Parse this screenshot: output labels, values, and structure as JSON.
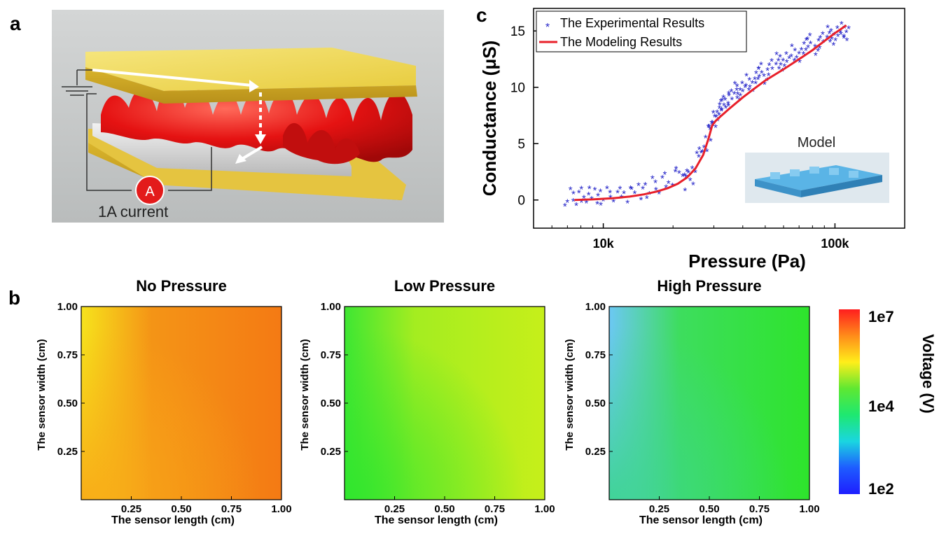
{
  "panels": {
    "a": {
      "letter": "a",
      "current_label": "1A current",
      "ammeter_symbol": "A"
    },
    "b": {
      "letter": "b"
    },
    "c": {
      "letter": "c",
      "inset_label": "Model"
    }
  },
  "chart_data": [
    {
      "panel": "c",
      "type": "scatter",
      "xlabel": "Pressure (Pa)",
      "ylabel": "Conductance (μS)",
      "x_scale": "log",
      "xlim": [
        5000,
        200000
      ],
      "ylim": [
        -2.5,
        17
      ],
      "x_ticks": [
        {
          "value": 10000,
          "label": "10k"
        },
        {
          "value": 100000,
          "label": "100k"
        }
      ],
      "y_ticks": [
        0,
        5,
        10,
        15
      ],
      "legend_position": "top-left",
      "series": [
        {
          "name": "The Experimental Results",
          "marker": "asterisk",
          "color": "#2727c9",
          "x": [
            7000,
            7300,
            7600,
            7900,
            8200,
            8500,
            8800,
            9200,
            9600,
            10000,
            10500,
            11000,
            11600,
            12200,
            12800,
            13500,
            14200,
            15000,
            15800,
            16500,
            17300,
            18100,
            19000,
            20000,
            21000,
            22000,
            22700,
            23300,
            24000,
            24800,
            25500,
            26300,
            27000,
            27700,
            28400,
            29000,
            29600,
            30200,
            31000,
            32000,
            33000,
            34000,
            35500,
            37000,
            38500,
            40000,
            42000,
            44000,
            46000,
            48000,
            50000,
            53000,
            56000,
            59000,
            62000,
            66000,
            70000,
            74000,
            78000,
            83000,
            88000,
            93000,
            98000,
            103000,
            108000,
            112000
          ],
          "y": [
            0.2,
            0.4,
            0.1,
            0.3,
            0.2,
            0.5,
            0.3,
            0.2,
            0.4,
            0.3,
            0.5,
            0.4,
            0.3,
            0.6,
            0.5,
            0.8,
            0.6,
            1.0,
            0.9,
            1.4,
            1.1,
            1.6,
            1.5,
            2.0,
            2.6,
            1.4,
            2.2,
            2.8,
            1.2,
            3.0,
            3.8,
            4.2,
            5.0,
            4.5,
            5.8,
            6.5,
            7.0,
            7.2,
            7.6,
            8.1,
            8.4,
            8.9,
            9.1,
            9.6,
            9.4,
            10.0,
            10.5,
            10.2,
            10.9,
            11.3,
            11.0,
            11.8,
            12.2,
            12.0,
            12.6,
            13.1,
            12.8,
            13.5,
            13.9,
            13.6,
            14.2,
            14.6,
            14.3,
            14.9,
            15.1,
            14.7
          ]
        },
        {
          "name": "The Modeling Results",
          "marker": "line",
          "color": "#e8202a",
          "x": [
            7500,
            9000,
            11000,
            13000,
            15000,
            17000,
            19000,
            21000,
            23000,
            25000,
            27000,
            28500,
            29500,
            30500,
            32000,
            35000,
            40000,
            45000,
            50000,
            60000,
            70000,
            80000,
            90000,
            100000,
            112000
          ],
          "y": [
            0.0,
            0.05,
            0.15,
            0.3,
            0.5,
            0.75,
            1.05,
            1.45,
            2.0,
            2.8,
            4.0,
            5.5,
            6.6,
            7.0,
            7.4,
            8.1,
            9.1,
            9.9,
            10.6,
            11.6,
            12.5,
            13.3,
            14.1,
            14.8,
            15.5
          ]
        }
      ]
    },
    {
      "panel": "b",
      "type": "heatmap",
      "title": "No Pressure",
      "xlabel": "The sensor length (cm)",
      "ylabel": "The sensor width (cm)",
      "xlim": [
        0,
        1
      ],
      "ylim": [
        0,
        1
      ],
      "x_ticks": [
        "0.25",
        "0.50",
        "0.75",
        "1.00"
      ],
      "y_ticks": [
        "0.25",
        "0.50",
        "0.75",
        "1.00"
      ],
      "colors": {
        "base": "#f47a14",
        "edge": "#f6e31c",
        "corner": "#f8a818"
      }
    },
    {
      "panel": "b",
      "type": "heatmap",
      "title": "Low Pressure",
      "xlabel": "The sensor length (cm)",
      "ylabel": "The sensor width (cm)",
      "xlim": [
        0,
        1
      ],
      "ylim": [
        0,
        1
      ],
      "x_ticks": [
        "0.25",
        "0.50",
        "0.75",
        "1.00"
      ],
      "y_ticks": [
        "0.25",
        "0.50",
        "0.75",
        "1.00"
      ],
      "colors": {
        "base": "#c6ef1a",
        "edge": "#3ee633",
        "corner": "#2fe62e"
      }
    },
    {
      "panel": "b",
      "type": "heatmap",
      "title": "High Pressure",
      "xlabel": "The sensor length (cm)",
      "ylabel": "The sensor width (cm)",
      "xlim": [
        0,
        1
      ],
      "ylim": [
        0,
        1
      ],
      "x_ticks": [
        "0.25",
        "0.50",
        "0.75",
        "1.00"
      ],
      "y_ticks": [
        "0.25",
        "0.50",
        "0.75",
        "1.00"
      ],
      "colors": {
        "base": "#2ee42c",
        "edge": "#6cc8f4",
        "corner": "#3cd58e"
      }
    }
  ],
  "colorbar": {
    "label": "Voltage (V)",
    "ticks": [
      "1e7",
      "1e4",
      "1e2"
    ],
    "colors": [
      "#ff1e1e",
      "#ff8c1a",
      "#ffee1a",
      "#5ee832",
      "#1ee870",
      "#1ad6e0",
      "#1e5cff",
      "#1e1eff"
    ]
  }
}
